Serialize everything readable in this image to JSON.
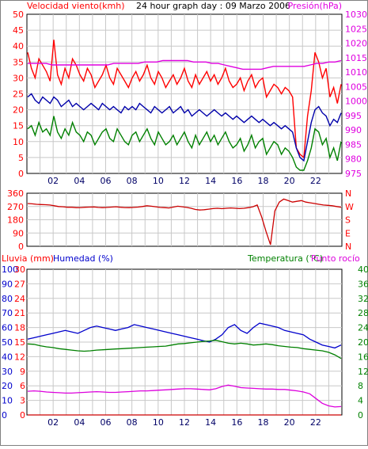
{
  "chart_data": [
    {
      "type": "line",
      "title": "24 hour graph day : 09 Marzo 2006",
      "left_axis_label": "Velocidad viento(kmh)",
      "right_axis_label": "Presión(hPa)",
      "x_ticks": [
        "02",
        "04",
        "06",
        "08",
        "10",
        "12",
        "14",
        "16",
        "18",
        "20",
        "22"
      ],
      "ylim_left": [
        0,
        50
      ],
      "yticks_left": [
        "0",
        "5",
        "10",
        "15",
        "20",
        "25",
        "30",
        "35",
        "40",
        "45",
        "50"
      ],
      "ylim_right": [
        975,
        1030
      ],
      "yticks_right": [
        "975",
        "980",
        "985",
        "990",
        "995",
        "1000",
        "1005",
        "1010",
        "1015",
        "1020",
        "1025",
        "1030"
      ],
      "grid": true,
      "series": [
        {
          "axis": "left",
          "color": "#ff0000",
          "values": [
            38,
            33,
            30,
            36,
            34,
            32,
            29,
            42,
            31,
            28,
            33,
            30,
            36,
            34,
            31,
            29,
            33,
            31,
            27,
            29,
            31,
            34,
            30,
            28,
            33,
            31,
            29,
            27,
            30,
            32,
            29,
            31,
            34,
            30,
            28,
            32,
            30,
            27,
            29,
            31,
            28,
            30,
            33,
            29,
            27,
            31,
            28,
            30,
            32,
            29,
            31,
            28,
            30,
            33,
            29,
            27,
            28,
            30,
            26,
            29,
            31,
            27,
            29,
            30,
            24,
            26,
            28,
            27,
            25,
            27,
            26,
            24,
            8,
            6,
            5,
            18,
            26,
            38,
            35,
            30,
            33,
            24,
            27,
            22,
            28
          ]
        },
        {
          "axis": "left",
          "color": "#0000aa",
          "values": [
            24,
            25,
            23,
            22,
            24,
            23,
            22,
            24,
            23,
            21,
            22,
            23,
            21,
            22,
            21,
            20,
            21,
            22,
            21,
            20,
            22,
            21,
            20,
            21,
            20,
            19,
            21,
            20,
            21,
            20,
            22,
            21,
            20,
            19,
            21,
            20,
            19,
            20,
            21,
            19,
            20,
            21,
            19,
            20,
            18,
            19,
            20,
            19,
            18,
            19,
            20,
            19,
            18,
            19,
            18,
            17,
            18,
            17,
            16,
            17,
            18,
            17,
            16,
            17,
            16,
            15,
            16,
            15,
            14,
            15,
            14,
            13,
            8,
            5,
            4,
            10,
            16,
            20,
            21,
            19,
            18,
            15,
            17,
            16,
            19
          ]
        },
        {
          "axis": "left",
          "color": "#008000",
          "values": [
            14,
            15,
            12,
            16,
            13,
            14,
            12,
            18,
            13,
            11,
            14,
            12,
            16,
            13,
            12,
            10,
            13,
            12,
            9,
            11,
            13,
            14,
            11,
            10,
            14,
            12,
            10,
            9,
            12,
            13,
            10,
            12,
            14,
            11,
            9,
            13,
            11,
            9,
            10,
            12,
            9,
            11,
            13,
            10,
            8,
            12,
            9,
            11,
            13,
            10,
            12,
            9,
            11,
            13,
            10,
            8,
            9,
            11,
            7,
            9,
            12,
            8,
            10,
            11,
            6,
            8,
            10,
            9,
            6,
            8,
            7,
            5,
            2,
            1,
            1,
            4,
            8,
            14,
            13,
            9,
            11,
            5,
            8,
            4,
            10
          ]
        },
        {
          "axis": "right",
          "color": "#e000e0",
          "values": [
            1013,
            1013,
            1013,
            1013,
            1012.5,
            1012.5,
            1012.5,
            1012.5,
            1012.5,
            1012.5,
            1012.5,
            1012.5,
            1012.5,
            1012.5,
            1013,
            1013,
            1013,
            1013,
            1013,
            1013.5,
            1013.5,
            1013.5,
            1014,
            1014,
            1014,
            1014,
            1014,
            1013.5,
            1013.5,
            1013.5,
            1013,
            1013,
            1012.5,
            1012,
            1011.5,
            1011,
            1011,
            1011,
            1011,
            1011.5,
            1012,
            1012,
            1012,
            1012,
            1012,
            1012,
            1012.5,
            1013,
            1013,
            1013.5,
            1013.5,
            1014
          ]
        }
      ]
    },
    {
      "type": "line",
      "left_axis_label": "",
      "ylim_left": [
        0,
        360
      ],
      "yticks_left": [
        "0",
        "90",
        "180",
        "270",
        "360"
      ],
      "right_direction_labels": [
        "N",
        "W",
        "S",
        "E",
        "N"
      ],
      "grid": true,
      "series": [
        {
          "axis": "left",
          "color": "#cc0000",
          "values": [
            290,
            288,
            285,
            283,
            282,
            280,
            275,
            270,
            268,
            265,
            265,
            262,
            263,
            265,
            266,
            267,
            264,
            262,
            264,
            266,
            268,
            265,
            263,
            262,
            264,
            266,
            270,
            275,
            272,
            268,
            264,
            262,
            260,
            266,
            272,
            268,
            264,
            258,
            250,
            246,
            248,
            252,
            256,
            258,
            255,
            258,
            260,
            258,
            256,
            258,
            262,
            268,
            280,
            200,
            100,
            10,
            240,
            300,
            320,
            310,
            300,
            305,
            310,
            300,
            295,
            290,
            285,
            280,
            278,
            275,
            270,
            265
          ]
        }
      ]
    },
    {
      "type": "line",
      "left_axis_label": "Lluvia (mm)",
      "left_axis_label2": "Humedad (%)",
      "right_axis_label": "Temperatura (°C)",
      "right_axis_label2": "Punto rocío",
      "ylim_rain": [
        0,
        30
      ],
      "yticks_rain": [
        "0",
        "3",
        "6",
        "9",
        "12",
        "15",
        "18",
        "21",
        "24",
        "27",
        "30"
      ],
      "ylim_humidity": [
        0,
        100
      ],
      "yticks_humidity": [
        "0",
        "10",
        "20",
        "30",
        "40",
        "50",
        "60",
        "70",
        "80",
        "90",
        "100"
      ],
      "ylim_temp": [
        0,
        40
      ],
      "yticks_temp": [
        "0",
        "4",
        "8",
        "12",
        "16",
        "20",
        "24",
        "28",
        "32",
        "36",
        "40"
      ],
      "grid": true,
      "series": [
        {
          "axis": "humidity",
          "color": "#0000cc",
          "values": [
            52,
            53,
            54,
            55,
            56,
            57,
            58,
            57,
            56,
            58,
            60,
            61,
            60,
            59,
            58,
            59,
            60,
            62,
            61,
            60,
            59,
            58,
            57,
            56,
            55,
            54,
            53,
            52,
            51,
            50,
            52,
            55,
            60,
            62,
            58,
            56,
            60,
            63,
            62,
            61,
            60,
            58,
            57,
            56,
            55,
            52,
            50,
            48,
            47,
            46,
            48
          ]
        },
        {
          "axis": "temp",
          "color": "#008000",
          "values": [
            19.5,
            19.4,
            19,
            18.7,
            18.5,
            18.2,
            18,
            17.8,
            17.6,
            17.5,
            17.6,
            17.8,
            17.9,
            18,
            18.1,
            18.2,
            18.3,
            18.4,
            18.5,
            18.6,
            18.7,
            18.8,
            18.9,
            19.2,
            19.5,
            19.6,
            19.8,
            20,
            20.2,
            20.3,
            20.5,
            20.1,
            19.7,
            19.5,
            19.7,
            19.5,
            19.2,
            19.3,
            19.5,
            19.3,
            19,
            18.8,
            18.6,
            18.5,
            18.2,
            18,
            17.8,
            17.6,
            17.2,
            16.5,
            15.5
          ]
        },
        {
          "axis": "temp",
          "color": "#dd00dd",
          "values": [
            6.5,
            6.6,
            6.5,
            6.3,
            6.2,
            6.1,
            6,
            6,
            6.1,
            6.2,
            6.3,
            6.4,
            6.3,
            6.2,
            6.2,
            6.3,
            6.4,
            6.5,
            6.6,
            6.6,
            6.7,
            6.8,
            6.9,
            7,
            7.1,
            7.2,
            7.2,
            7.1,
            7,
            6.9,
            7.2,
            7.8,
            8.2,
            7.9,
            7.5,
            7.4,
            7.3,
            7.2,
            7.1,
            7.1,
            7,
            7,
            6.8,
            6.6,
            6.3,
            5.8,
            4.5,
            3.2,
            2.5,
            2.2,
            2.3
          ]
        },
        {
          "axis": "rain",
          "color": "#cc0000",
          "values": [
            0,
            0,
            0,
            0,
            0,
            0,
            0,
            0,
            0,
            0
          ]
        }
      ]
    }
  ]
}
